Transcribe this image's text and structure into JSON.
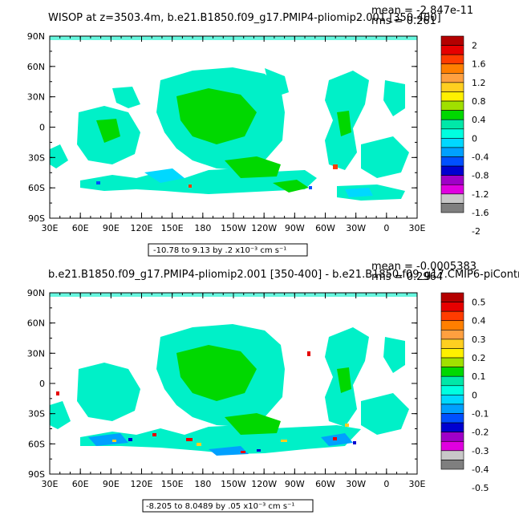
{
  "panels": [
    {
      "title": "WISOP at z=3503.4m, b.e21.B1850.f09_g17.PMIP4-pliomip2.001 [350-400]",
      "mean": "mean = -2.847e-11",
      "rms": "rms = 0.261",
      "info": "-10.78 to 9.13 by .2 x10⁻³ cm s⁻¹",
      "colorbar_labels": [
        "2",
        "1.6",
        "1.2",
        "0.8",
        "0.4",
        "0",
        "-0.4",
        "-0.8",
        "-1.2",
        "-1.6",
        "-2"
      ]
    },
    {
      "title": "b.e21.B1850.f09_g17.PMIP4-pliomip2.001 [350-400] - b.e21.B1850.f09_g17.CMIP6-piControl.001",
      "mean": "mean = -0.0005383",
      "rms": "rms = 0.2964",
      "info": "-8.205 to 8.0489 by .05 x10⁻³ cm s⁻¹",
      "colorbar_labels": [
        "0.5",
        "0.4",
        "0.3",
        "0.2",
        "0.1",
        "0",
        "-0.1",
        "-0.2",
        "-0.3",
        "-0.4",
        "-0.5"
      ]
    }
  ],
  "lat_labels": [
    "90N",
    "60N",
    "30N",
    "0",
    "30S",
    "60S",
    "90S"
  ],
  "lon_labels": [
    "30E",
    "60E",
    "90E",
    "120E",
    "150E",
    "180",
    "150W",
    "120W",
    "90W",
    "60W",
    "30W",
    "0",
    "30E"
  ],
  "colorbar_colors": [
    "#b40000",
    "#e60000",
    "#ff3c00",
    "#ff7f00",
    "#ffa040",
    "#ffcf20",
    "#fff000",
    "#a0e000",
    "#00d800",
    "#00e8a8",
    "#00ffe0",
    "#00d8ff",
    "#00a0ff",
    "#0050ff",
    "#0000d0",
    "#a000c8",
    "#e000e0",
    "#c8c8c8",
    "#7f7f7f"
  ]
}
